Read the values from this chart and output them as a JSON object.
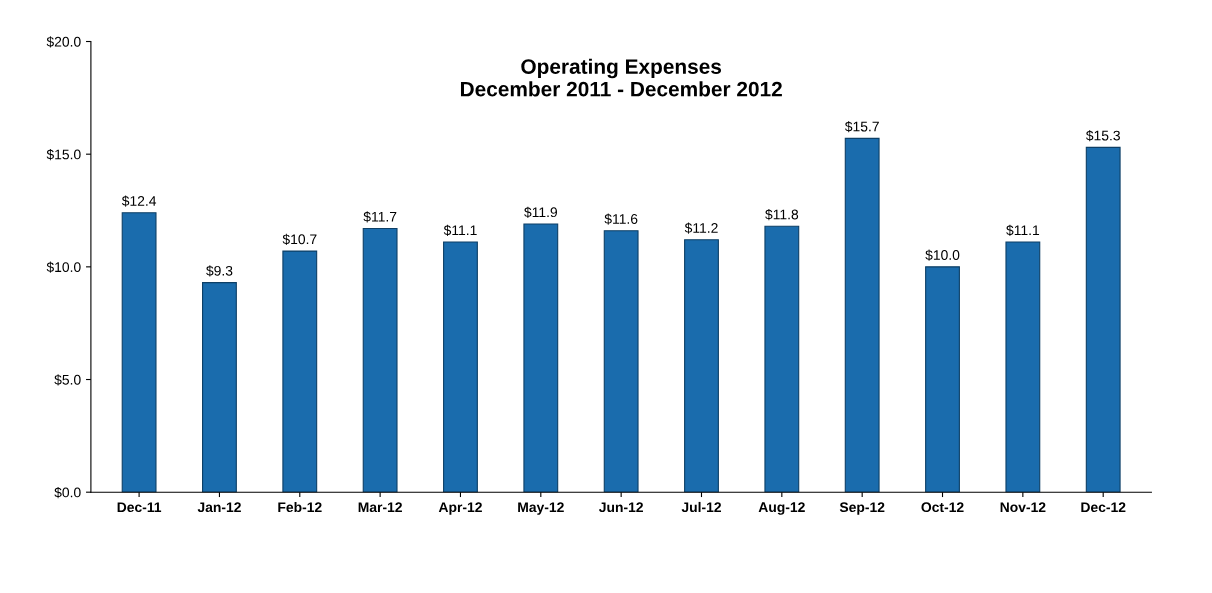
{
  "chart_data": {
    "type": "bar",
    "title": "Operating Expenses\nDecember 2011 - December 2012",
    "categories": [
      "Dec-11",
      "Jan-12",
      "Feb-12",
      "Mar-12",
      "Apr-12",
      "May-12",
      "Jun-12",
      "Jul-12",
      "Aug-12",
      "Sep-12",
      "Oct-12",
      "Nov-12",
      "Dec-12"
    ],
    "values": [
      12.4,
      9.3,
      10.7,
      11.7,
      11.1,
      11.9,
      11.6,
      11.2,
      11.8,
      15.7,
      10.0,
      11.1,
      15.3
    ],
    "value_labels": [
      "$12.4",
      "$9.3",
      "$10.7",
      "$11.7",
      "$11.1",
      "$11.9",
      "$11.6",
      "$11.2",
      "$11.8",
      "$15.7",
      "$10.0",
      "$11.1",
      "$15.3"
    ],
    "color": "#1a6cad",
    "ylim": [
      0,
      20
    ],
    "yticks": [
      {
        "value": 0,
        "label": "$0.0"
      },
      {
        "value": 5,
        "label": "$5.0"
      },
      {
        "value": 10,
        "label": "$10.0"
      },
      {
        "value": 15,
        "label": "$15.0"
      },
      {
        "value": 20,
        "label": "$20.0"
      }
    ],
    "grid": false
  }
}
